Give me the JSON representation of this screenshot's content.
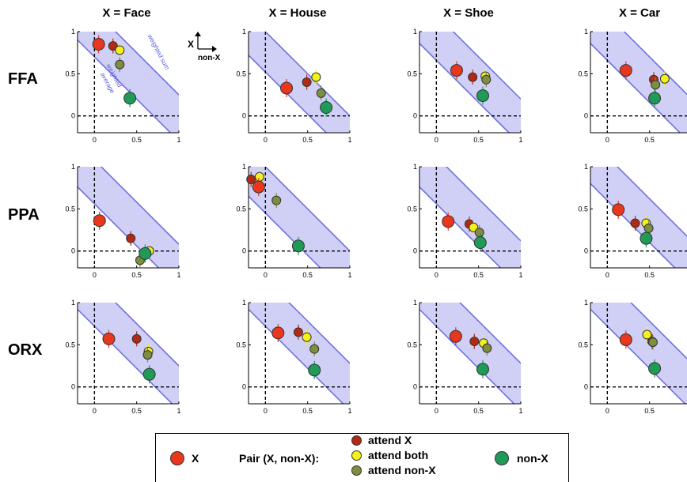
{
  "columns": [
    "X = Face",
    "X = House",
    "X = Shoe",
    "X = Car"
  ],
  "rows": [
    "FFA",
    "PPA",
    "ORX"
  ],
  "inset_axis": {
    "y_label": "X",
    "x_label": "non-X"
  },
  "band_labels": {
    "upper": "weighted sum",
    "lower": "weighted average"
  },
  "colors": {
    "x": "#e8371c",
    "attend_x": "#b22a14",
    "attend_both": "#f5f11a",
    "attend_nonx": "#7d8e3e",
    "nonx": "#1f9a57",
    "band": "#c8c8f5",
    "band_edge": "#7070e0"
  },
  "legend": {
    "x_label": "X",
    "pair_label": "Pair (X, non-X):",
    "attend_x": "attend X",
    "attend_both": "attend both",
    "attend_nonx": "attend non-X",
    "nonx_label": "non-X"
  },
  "chart_data": {
    "type": "scatter",
    "xlim": [
      -0.2,
      1
    ],
    "ylim": [
      -0.2,
      1
    ],
    "xticks": [
      "0",
      "0.5",
      "1"
    ],
    "yticks": [
      "0",
      "0.5",
      "1"
    ],
    "panels": [
      {
        "row": "FFA",
        "col": "X = Face",
        "band": [
          0.7,
          1.25
        ],
        "x": [
          0.05,
          0.85
        ],
        "attend_x": [
          0.22,
          0.83
        ],
        "attend_both": [
          0.3,
          0.78
        ],
        "attend_nonx": [
          0.3,
          0.61
        ],
        "nonx": [
          0.42,
          0.21
        ]
      },
      {
        "row": "FFA",
        "col": "X = House",
        "band": [
          0.52,
          1.0
        ],
        "x": [
          0.25,
          0.33
        ],
        "attend_x": [
          0.49,
          0.4
        ],
        "attend_both": [
          0.6,
          0.46
        ],
        "attend_nonx": [
          0.66,
          0.27
        ],
        "nonx": [
          0.72,
          0.1
        ]
      },
      {
        "row": "FFA",
        "col": "X = Shoe",
        "band": [
          0.66,
          1.2
        ],
        "x": [
          0.24,
          0.54
        ],
        "attend_x": [
          0.43,
          0.46
        ],
        "attend_both": [
          0.58,
          0.47
        ],
        "attend_nonx": [
          0.59,
          0.43
        ],
        "nonx": [
          0.55,
          0.24
        ]
      },
      {
        "row": "FFA",
        "col": "X = Car",
        "band": [
          0.66,
          1.2
        ],
        "x": [
          0.22,
          0.54
        ],
        "attend_x": [
          0.55,
          0.43
        ],
        "attend_both": [
          0.68,
          0.44
        ],
        "attend_nonx": [
          0.57,
          0.37
        ],
        "nonx": [
          0.56,
          0.21
        ]
      },
      {
        "row": "PPA",
        "col": "X = Face",
        "band": [
          0.56,
          1.08
        ],
        "x": [
          0.06,
          0.36
        ],
        "attend_x": [
          0.43,
          0.15
        ],
        "attend_both": [
          0.65,
          0.0
        ],
        "attend_nonx": [
          0.54,
          -0.11
        ],
        "nonx": [
          0.6,
          -0.03
        ]
      },
      {
        "row": "PPA",
        "col": "X = House",
        "band": [
          0.45,
          1.0
        ],
        "x": [
          -0.08,
          0.76
        ],
        "attend_x": [
          -0.17,
          0.85
        ],
        "attend_both": [
          -0.07,
          0.88
        ],
        "attend_nonx": [
          0.13,
          0.6
        ],
        "nonx": [
          0.39,
          0.06
        ]
      },
      {
        "row": "PPA",
        "col": "X = Shoe",
        "band": [
          0.56,
          1.12
        ],
        "x": [
          0.14,
          0.35
        ],
        "attend_x": [
          0.39,
          0.32
        ],
        "attend_both": [
          0.44,
          0.28
        ],
        "attend_nonx": [
          0.51,
          0.22
        ],
        "nonx": [
          0.52,
          0.1
        ]
      },
      {
        "row": "PPA",
        "col": "X = Car",
        "band": [
          0.6,
          1.12
        ],
        "x": [
          0.13,
          0.49
        ],
        "attend_x": [
          0.33,
          0.33
        ],
        "attend_both": [
          0.46,
          0.33
        ],
        "attend_nonx": [
          0.49,
          0.27
        ],
        "nonx": [
          0.46,
          0.15
        ]
      },
      {
        "row": "ORX",
        "col": "X = Face",
        "band": [
          0.72,
          1.25
        ],
        "x": [
          0.17,
          0.57
        ],
        "attend_x": [
          0.5,
          0.57
        ],
        "attend_both": [
          0.64,
          0.42
        ],
        "attend_nonx": [
          0.63,
          0.38
        ],
        "nonx": [
          0.65,
          0.15
        ]
      },
      {
        "row": "ORX",
        "col": "X = House",
        "band": [
          0.72,
          1.28
        ],
        "x": [
          0.15,
          0.64
        ],
        "attend_x": [
          0.39,
          0.65
        ],
        "attend_both": [
          0.49,
          0.59
        ],
        "attend_nonx": [
          0.58,
          0.45
        ],
        "nonx": [
          0.58,
          0.2
        ]
      },
      {
        "row": "ORX",
        "col": "X = Shoe",
        "band": [
          0.72,
          1.28
        ],
        "x": [
          0.23,
          0.6
        ],
        "attend_x": [
          0.45,
          0.54
        ],
        "attend_both": [
          0.56,
          0.52
        ],
        "attend_nonx": [
          0.6,
          0.46
        ],
        "nonx": [
          0.55,
          0.21
        ]
      },
      {
        "row": "ORX",
        "col": "X = Car",
        "band": [
          0.72,
          1.28
        ],
        "x": [
          0.22,
          0.56
        ],
        "attend_x": [
          0.53,
          0.54
        ],
        "attend_both": [
          0.47,
          0.62
        ],
        "attend_nonx": [
          0.54,
          0.53
        ],
        "nonx": [
          0.56,
          0.22
        ]
      }
    ]
  }
}
